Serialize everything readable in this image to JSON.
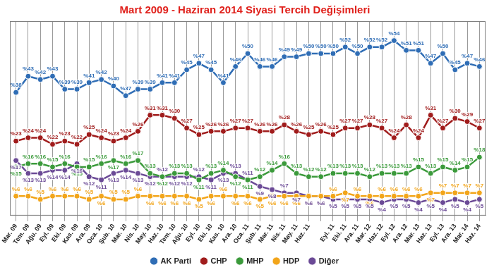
{
  "chart_data": {
    "type": "line",
    "title": "Mart 2009 - Haziran 2014 Siyasi Tercih Değişimleri",
    "categories": [
      "Mar. 09",
      "Tem. 09",
      "Ağu. 09",
      "Eyl. 09",
      "Eki. 09",
      "Kas. 09",
      "Ara. 09",
      "Oca. 10",
      "Şub. 10",
      "Mar. 10",
      "Nis. 10",
      "May. 10",
      "Haz. 10",
      "Tem. 10",
      "Ağu. 10",
      "Eyl. 10",
      "Eki. 10",
      "Kas. 10",
      "Ara. 10",
      "Oca. 11",
      "Şub. 11",
      "Mar. 11",
      "Nis. 11",
      "May. 11",
      "Haz. 11",
      null,
      "Eyl. 11",
      "Eki. 11",
      "Ara. 11",
      "Mar. 12",
      "Haz. 12",
      "Eyl. 12",
      "Ara. 12",
      "Mar. 13",
      "Haz. 13",
      "Eyl. 13",
      "Ara. 13",
      "Mar. 14",
      "Haz. 14"
    ],
    "series": [
      {
        "name": "AK Parti",
        "color": "#2f6db5",
        "marker": "circle",
        "values": [
          38,
          43,
          42,
          43,
          39,
          39,
          41,
          42,
          40,
          37,
          39,
          39,
          41,
          41,
          45,
          47,
          45,
          41,
          46,
          50,
          46,
          46,
          49,
          49,
          50,
          50,
          50,
          52,
          50,
          52,
          52,
          54,
          51,
          51,
          47,
          50,
          45,
          47,
          46
        ],
        "value_labels": [
          "%38",
          "%43",
          "%42",
          "%43",
          "%39",
          "%39",
          "%41",
          "%42",
          "%40",
          "%37",
          "%39",
          "%39",
          "%41",
          "%41",
          "%45",
          "%47",
          "%45",
          "%41",
          "%46",
          "%50",
          "%46",
          "%46",
          "%49",
          "%49",
          "%50",
          "%50",
          "%50",
          "%52",
          "%50",
          "%52",
          "%52",
          "%54",
          "%51",
          "%51",
          "%47",
          "%50",
          "%45",
          "%47",
          "%46"
        ]
      },
      {
        "name": "CHP",
        "color": "#a01c1c",
        "marker": "circle",
        "values": [
          23,
          24,
          24,
          22,
          23,
          22,
          25,
          24,
          23,
          24,
          26,
          31,
          31,
          30,
          27,
          25,
          26,
          26,
          27,
          27,
          26,
          26,
          28,
          26,
          25,
          26,
          25,
          27,
          27,
          28,
          27,
          24,
          28,
          24,
          31,
          27,
          30,
          29,
          27
        ],
        "value_labels": [
          "%23",
          "%24",
          "%24",
          "%22",
          "%23",
          "%22",
          "%25",
          "%24",
          "%23",
          "%24",
          "%26",
          "%31",
          "%31",
          "%30",
          "%27",
          "%25",
          "%26",
          "%26",
          "%27",
          "%27",
          "%26",
          "%26",
          "%28",
          "%26",
          "%25",
          "%26",
          "%25",
          "%27",
          "%27",
          "%28",
          "%27",
          "%24",
          "%28",
          "%24",
          "%31",
          "%27",
          "%30",
          "%29",
          "%27"
        ]
      },
      {
        "name": "MHP",
        "color": "#3b9a3b",
        "marker": "circle",
        "values": [
          15,
          16,
          16,
          15,
          16,
          15,
          15,
          16,
          17,
          16,
          17,
          13,
          12,
          13,
          13,
          11,
          13,
          14,
          12,
          11,
          12,
          14,
          16,
          13,
          12,
          12,
          13,
          13,
          13,
          12,
          13,
          13,
          13,
          15,
          13,
          15,
          14,
          15,
          18
        ],
        "value_labels": [
          "%15",
          "%16",
          "%16",
          "%15",
          "%16",
          "%15",
          "%15",
          "%16",
          "%17",
          "%16",
          "%17",
          "%13",
          "%12",
          "%13",
          "%13",
          "%11",
          "%13",
          "%14",
          "%12",
          "%11",
          "%12",
          "%14",
          "%16",
          "%13",
          "%12",
          "%12",
          "%13",
          "%13",
          "%13",
          "%12",
          "%13",
          "%13",
          "%13",
          "%15",
          "%13",
          "%15",
          "%14",
          "%15",
          "%18"
        ]
      },
      {
        "name": "HDP",
        "color": "#f2a51a",
        "marker": "circle",
        "values": [
          6,
          6,
          5,
          6,
          6,
          6,
          5,
          6,
          5,
          5,
          6,
          6,
          6,
          6,
          6,
          5,
          6,
          6,
          6,
          6,
          5,
          6,
          6,
          6,
          6,
          6,
          6,
          7,
          6,
          6,
          6,
          6,
          6,
          6,
          7,
          7,
          7,
          7,
          7
        ],
        "value_labels": [
          "%6",
          "%6",
          "%5",
          "%6",
          "%6",
          "%6",
          "%5",
          "%6",
          "%5",
          "%5",
          "%6",
          "%6",
          "%6",
          "%6",
          "%6",
          "%5",
          "%6",
          "%6",
          "%6",
          "%6",
          "%5",
          "%6",
          "%6",
          "%6",
          "%6",
          "%6",
          "%6",
          "%7",
          "%6",
          "%6",
          "%6",
          "%6",
          "%6",
          "%6",
          "%7",
          "%7",
          "%7",
          "%7",
          "%7"
        ]
      },
      {
        "name": "Diğer",
        "color": "#6b4a96",
        "marker": "circle",
        "values": [
          17,
          13,
          13,
          14,
          14,
          16,
          12,
          11,
          13,
          14,
          13,
          12,
          12,
          12,
          12,
          12,
          11,
          13,
          13,
          11,
          9,
          8,
          7,
          7,
          6,
          6,
          5,
          5,
          5,
          5,
          4,
          5,
          5,
          4,
          5,
          4,
          5,
          4,
          5
        ],
        "value_labels": [
          "%17",
          "%13",
          "%13",
          "%14",
          "%14",
          "%16",
          "%12",
          "%11",
          "%13",
          "%14",
          "%13",
          "%12",
          "%12",
          "%12",
          "%12",
          "%12",
          "%11",
          "%13",
          "%13",
          "%11",
          "%9",
          "%8",
          "%7",
          "%7",
          "%6",
          "%6",
          "%5",
          "%5",
          "%5",
          "%5",
          "%4",
          "%5",
          "%5",
          "%4",
          "%5",
          "%4",
          "%5",
          "%4",
          "%5"
        ]
      }
    ],
    "ylim": [
      0,
      60
    ],
    "tick_labels": "x",
    "grid": true,
    "legend": "bottom",
    "data_labels": true
  }
}
